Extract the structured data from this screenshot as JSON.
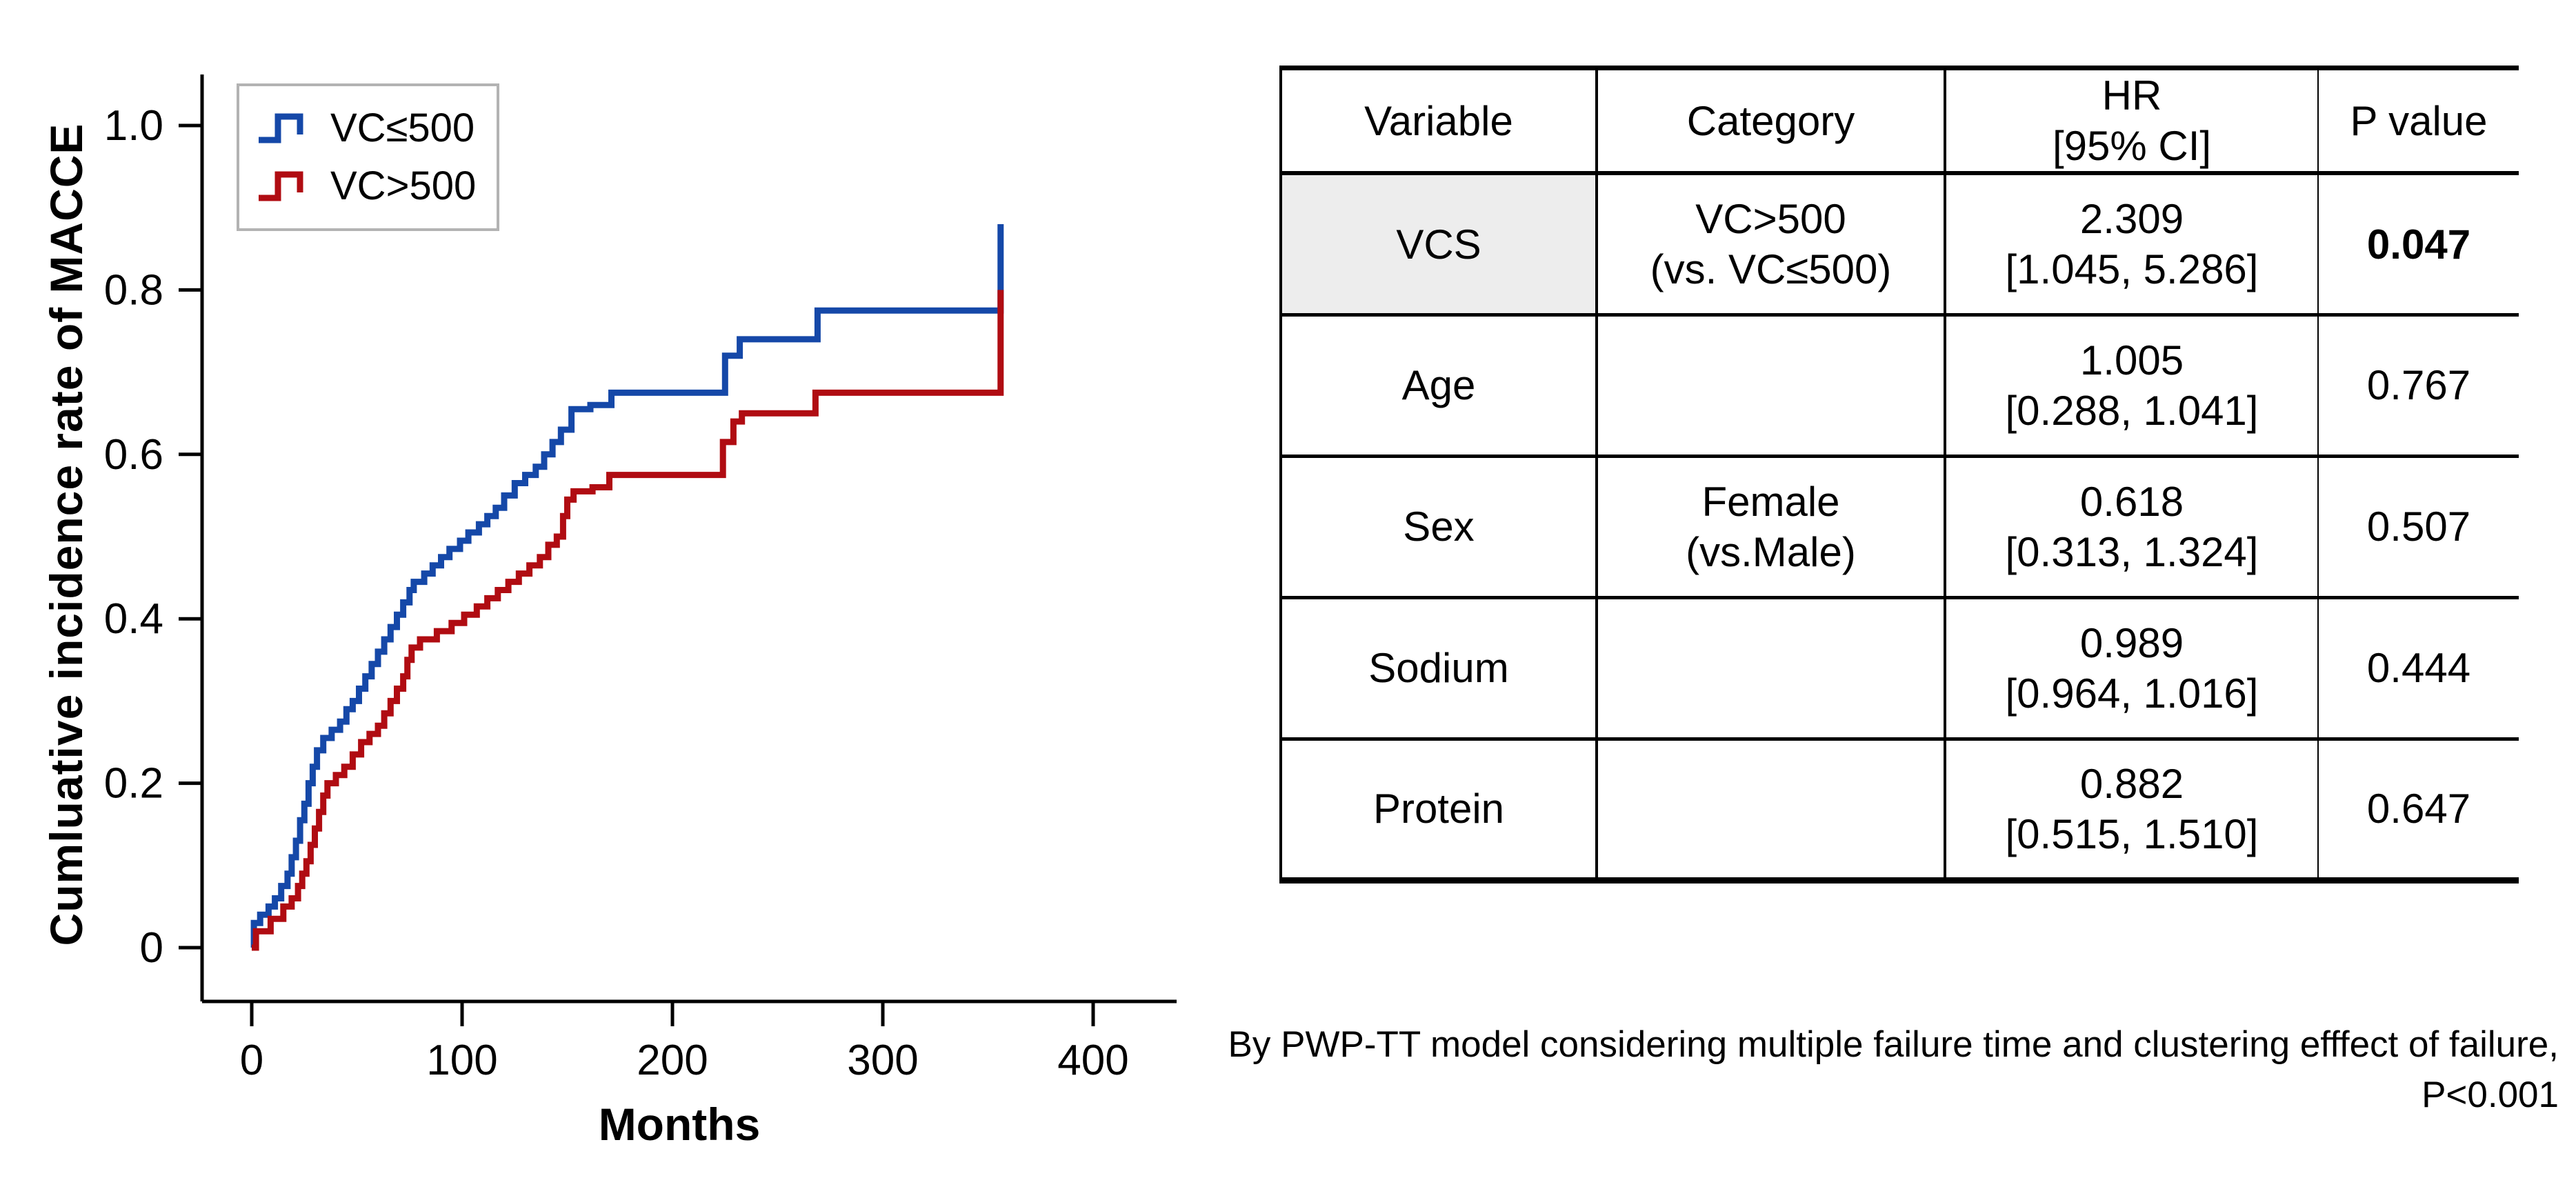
{
  "chart_data": {
    "type": "line",
    "subtype": "step-cumulative-incidence",
    "title": "",
    "xlabel": "Months",
    "ylabel": "Cumluative incidence rate of MACCE",
    "xlim": [
      0,
      440
    ],
    "ylim": [
      0,
      1.06
    ],
    "x_ticks": [
      "0",
      "100",
      "200",
      "300",
      "400"
    ],
    "y_ticks": [
      "0",
      "0.2",
      "0.4",
      "0.6",
      "0.8",
      "1.0"
    ],
    "grid": "off",
    "legend_position": "top-left",
    "series": [
      {
        "name": "VC≤500",
        "color": "#1548a8",
        "step": "post",
        "points": [
          [
            0,
            0
          ],
          [
            1,
            0.03
          ],
          [
            4,
            0.04
          ],
          [
            8,
            0.05
          ],
          [
            11,
            0.06
          ],
          [
            14,
            0.075
          ],
          [
            17,
            0.09
          ],
          [
            19,
            0.11
          ],
          [
            21,
            0.13
          ],
          [
            23,
            0.155
          ],
          [
            25,
            0.175
          ],
          [
            27,
            0.2
          ],
          [
            29,
            0.22
          ],
          [
            31,
            0.24
          ],
          [
            34,
            0.255
          ],
          [
            38,
            0.265
          ],
          [
            42,
            0.275
          ],
          [
            45,
            0.29
          ],
          [
            48,
            0.3
          ],
          [
            51,
            0.315
          ],
          [
            54,
            0.33
          ],
          [
            57,
            0.345
          ],
          [
            60,
            0.36
          ],
          [
            63,
            0.375
          ],
          [
            66,
            0.39
          ],
          [
            69,
            0.405
          ],
          [
            72,
            0.42
          ],
          [
            75,
            0.435
          ],
          [
            77,
            0.445
          ],
          [
            82,
            0.455
          ],
          [
            86,
            0.465
          ],
          [
            90,
            0.475
          ],
          [
            94,
            0.485
          ],
          [
            99,
            0.495
          ],
          [
            103,
            0.505
          ],
          [
            108,
            0.515
          ],
          [
            112,
            0.525
          ],
          [
            116,
            0.535
          ],
          [
            120,
            0.55
          ],
          [
            125,
            0.565
          ],
          [
            130,
            0.575
          ],
          [
            135,
            0.585
          ],
          [
            139,
            0.6
          ],
          [
            143,
            0.615
          ],
          [
            147,
            0.63
          ],
          [
            152,
            0.655
          ],
          [
            161,
            0.66
          ],
          [
            171,
            0.675
          ],
          [
            225,
            0.72
          ],
          [
            232,
            0.74
          ],
          [
            269,
            0.775
          ],
          [
            355,
            0.775
          ],
          [
            356,
            0.88
          ]
        ]
      },
      {
        "name": "VC>500",
        "color": "#b00c12",
        "step": "post",
        "points": [
          [
            0,
            0
          ],
          [
            2,
            0.02
          ],
          [
            9,
            0.035
          ],
          [
            15,
            0.05
          ],
          [
            19,
            0.06
          ],
          [
            22,
            0.075
          ],
          [
            24,
            0.09
          ],
          [
            26,
            0.105
          ],
          [
            28,
            0.125
          ],
          [
            30,
            0.145
          ],
          [
            32,
            0.165
          ],
          [
            34,
            0.185
          ],
          [
            36,
            0.2
          ],
          [
            40,
            0.21
          ],
          [
            44,
            0.22
          ],
          [
            48,
            0.235
          ],
          [
            52,
            0.25
          ],
          [
            56,
            0.26
          ],
          [
            60,
            0.27
          ],
          [
            63,
            0.285
          ],
          [
            66,
            0.3
          ],
          [
            69,
            0.315
          ],
          [
            72,
            0.33
          ],
          [
            74,
            0.35
          ],
          [
            76,
            0.365
          ],
          [
            80,
            0.375
          ],
          [
            88,
            0.385
          ],
          [
            95,
            0.395
          ],
          [
            101,
            0.405
          ],
          [
            107,
            0.415
          ],
          [
            112,
            0.425
          ],
          [
            117,
            0.435
          ],
          [
            122,
            0.445
          ],
          [
            127,
            0.455
          ],
          [
            132,
            0.465
          ],
          [
            137,
            0.475
          ],
          [
            141,
            0.49
          ],
          [
            145,
            0.5
          ],
          [
            148,
            0.525
          ],
          [
            150,
            0.545
          ],
          [
            153,
            0.555
          ],
          [
            162,
            0.56
          ],
          [
            170,
            0.575
          ],
          [
            224,
            0.615
          ],
          [
            229,
            0.64
          ],
          [
            233,
            0.65
          ],
          [
            268,
            0.675
          ],
          [
            355,
            0.675
          ],
          [
            356,
            0.8
          ]
        ]
      }
    ]
  },
  "table": {
    "headers": {
      "variable": "Variable",
      "category": "Category",
      "hr_line1": "HR",
      "hr_line2": "[95% CI]",
      "p": "P value"
    },
    "rows": [
      {
        "variable": "VCS",
        "category": [
          "VC>500",
          "(vs. VC≤500)"
        ],
        "hr": [
          "2.309",
          "[1.045, 5.286]"
        ],
        "p": "0.047"
      },
      {
        "variable": "Age",
        "category": [
          "",
          ""
        ],
        "hr": [
          "1.005",
          "[0.288, 1.041]"
        ],
        "p": "0.767"
      },
      {
        "variable": "Sex",
        "category": [
          "Female",
          "(vs.Male)"
        ],
        "hr": [
          "0.618",
          "[0.313, 1.324]"
        ],
        "p": "0.507"
      },
      {
        "variable": "Sodium",
        "category": [
          "",
          ""
        ],
        "hr": [
          "0.989",
          "[0.964, 1.016]"
        ],
        "p": "0.444"
      },
      {
        "variable": "Protein",
        "category": [
          "",
          ""
        ],
        "hr": [
          "0.882",
          "[0.515, 1.510]"
        ],
        "p": "0.647"
      }
    ]
  },
  "footnote": {
    "line1": "By PWP-TT model considering multiple failure time and clustering efffect of failure,",
    "line2": "P<0.001"
  },
  "colors": {
    "series_blue": "#1548a8",
    "series_red": "#b00c12",
    "legend_border": "#b3b3b3",
    "highlight_cell": "#ededed",
    "axis": "#000000"
  }
}
